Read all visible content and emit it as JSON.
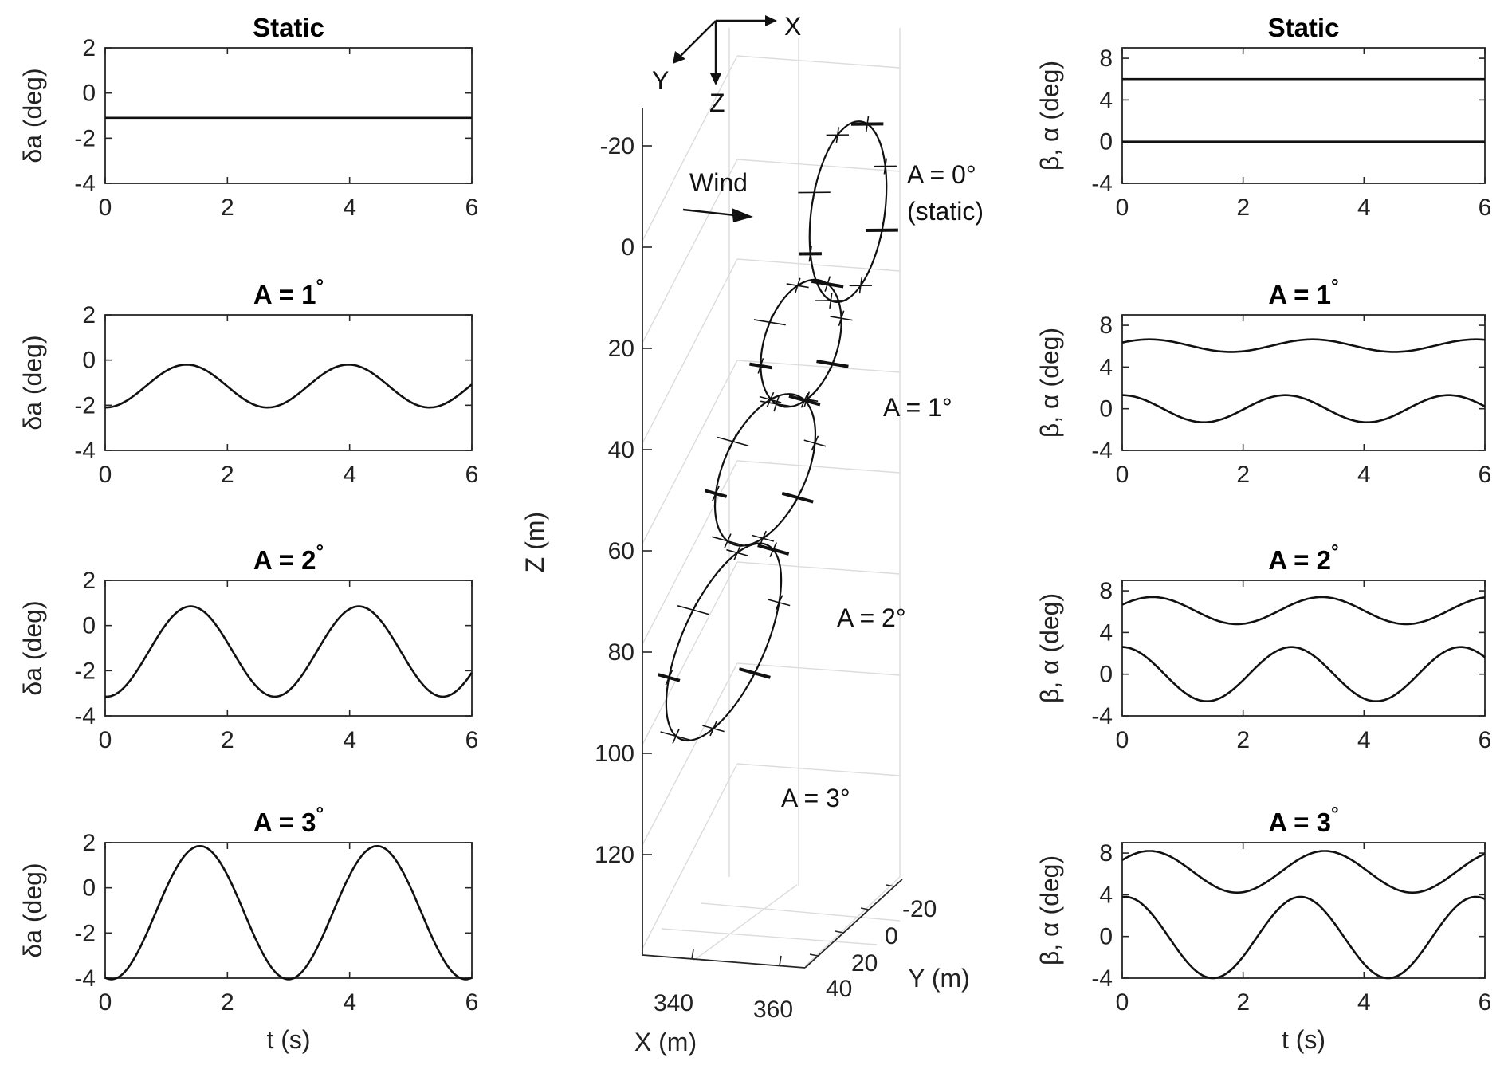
{
  "chart_data": [
    {
      "type": "line",
      "panel": "left",
      "row": 0,
      "title": "Static",
      "xlabel": "",
      "ylabel": "δa (deg)",
      "xlim": [
        0,
        6
      ],
      "ylim": [
        -4,
        2
      ],
      "xticks": [
        "0",
        "2",
        "4",
        "6"
      ],
      "yticks": [
        "2",
        "0",
        "-2",
        "-4"
      ],
      "series": [
        {
          "name": "δa",
          "kind": "constant",
          "value": -1.1
        }
      ]
    },
    {
      "type": "line",
      "panel": "left",
      "row": 1,
      "title": "A = 1°",
      "xlabel": "",
      "ylabel": "δa (deg)",
      "xlim": [
        0,
        6
      ],
      "ylim": [
        -4,
        2
      ],
      "xticks": [
        "0",
        "2",
        "4",
        "6"
      ],
      "yticks": [
        "2",
        "0",
        "-2",
        "-4"
      ],
      "series": [
        {
          "name": "δa",
          "kind": "sine",
          "offset": -1.15,
          "amplitude": 0.95,
          "period": 2.65,
          "peak_t": 1.33
        }
      ]
    },
    {
      "type": "line",
      "panel": "left",
      "row": 2,
      "title": "A = 2°",
      "xlabel": "",
      "ylabel": "δa (deg)",
      "xlim": [
        0,
        6
      ],
      "ylim": [
        -4,
        2
      ],
      "xticks": [
        "0",
        "2",
        "4",
        "6"
      ],
      "yticks": [
        "2",
        "0",
        "-2",
        "-4"
      ],
      "series": [
        {
          "name": "δa",
          "kind": "sine",
          "offset": -1.15,
          "amplitude": 2.0,
          "period": 2.75,
          "peak_t": 1.4
        }
      ]
    },
    {
      "type": "line",
      "panel": "left",
      "row": 3,
      "title": "A = 3°",
      "xlabel": "t (s)",
      "ylabel": "δa (deg)",
      "xlim": [
        0,
        6
      ],
      "ylim": [
        -4,
        2
      ],
      "xticks": [
        "0",
        "2",
        "4",
        "6"
      ],
      "yticks": [
        "2",
        "0",
        "-2",
        "-4"
      ],
      "series": [
        {
          "name": "δa",
          "kind": "sine",
          "offset": -1.1,
          "amplitude": 2.95,
          "period": 2.9,
          "peak_t": 1.55
        }
      ]
    },
    {
      "type": "line",
      "panel": "right",
      "row": 0,
      "title": "Static",
      "xlabel": "",
      "ylabel": "β, α (deg)",
      "xlim": [
        0,
        6
      ],
      "ylim": [
        -4,
        9
      ],
      "xticks": [
        "0",
        "2",
        "4",
        "6"
      ],
      "yticks": [
        "8",
        "4",
        "0",
        "-4"
      ],
      "series": [
        {
          "name": "β",
          "kind": "constant",
          "value": 6.0
        },
        {
          "name": "α",
          "kind": "constant",
          "value": 0.0
        }
      ]
    },
    {
      "type": "line",
      "panel": "right",
      "row": 1,
      "title": "A = 1°",
      "xlabel": "",
      "ylabel": "β, α (deg)",
      "xlim": [
        0,
        6
      ],
      "ylim": [
        -4,
        9
      ],
      "xticks": [
        "0",
        "2",
        "4",
        "6"
      ],
      "yticks": [
        "8",
        "4",
        "0",
        "-4"
      ],
      "series": [
        {
          "name": "β",
          "kind": "sine",
          "offset": 6.05,
          "amplitude": 0.6,
          "period": 2.7,
          "peak_t": 0.45
        },
        {
          "name": "α",
          "kind": "sine",
          "offset": 0.0,
          "amplitude": 1.3,
          "period": 2.7,
          "peak_t": 2.7
        }
      ]
    },
    {
      "type": "line",
      "panel": "right",
      "row": 2,
      "title": "A = 2°",
      "xlabel": "",
      "ylabel": "β, α (deg)",
      "xlim": [
        0,
        6
      ],
      "ylim": [
        -4,
        9
      ],
      "xticks": [
        "0",
        "2",
        "4",
        "6"
      ],
      "yticks": [
        "8",
        "4",
        "0",
        "-4"
      ],
      "series": [
        {
          "name": "β",
          "kind": "sine",
          "offset": 6.1,
          "amplitude": 1.3,
          "period": 2.8,
          "peak_t": 0.5
        },
        {
          "name": "α",
          "kind": "sine",
          "offset": 0.0,
          "amplitude": 2.6,
          "period": 2.8,
          "peak_t": 2.8
        }
      ]
    },
    {
      "type": "line",
      "panel": "right",
      "row": 3,
      "title": "A = 3°",
      "xlabel": "t (s)",
      "ylabel": "β, α (deg)",
      "xlim": [
        0,
        6
      ],
      "ylim": [
        -4,
        9
      ],
      "xticks": [
        "0",
        "2",
        "4",
        "6"
      ],
      "yticks": [
        "8",
        "4",
        "0",
        "-4"
      ],
      "series": [
        {
          "name": "β",
          "kind": "sine",
          "offset": 6.2,
          "amplitude": 2.0,
          "period": 2.9,
          "peak_t": 0.45
        },
        {
          "name": "α",
          "kind": "sine",
          "offset": -0.1,
          "amplitude": 3.9,
          "period": 2.9,
          "peak_t": 2.95
        }
      ]
    },
    {
      "type": "line3d",
      "panel": "center",
      "title": "",
      "xlabel": "X (m)",
      "ylabel": "Y (m)",
      "zlabel": "Z (m)",
      "xticks": [
        "340",
        "360"
      ],
      "yticks": [
        "-20",
        "0",
        "20",
        "40"
      ],
      "zticks": [
        "-20",
        "0",
        "20",
        "40",
        "60",
        "80",
        "100",
        "120"
      ],
      "zlim": [
        -30,
        140
      ],
      "frame_axes": [
        "X",
        "Y",
        "Z"
      ],
      "wind_label": "Wind",
      "annotations": [
        "A = 0°",
        "(static)",
        "A = 1°",
        "A = 2°",
        "A = 3°"
      ],
      "series": [
        {
          "name": "A = 0° (static)",
          "z_center": -7,
          "z_halfheight": 18,
          "y_halfwidth": 6.3,
          "tilt_deg": 8
        },
        {
          "name": "A = 1°",
          "z_center": 19,
          "z_halfheight": 13,
          "y_halfwidth": 6.0,
          "tilt_deg": 18
        },
        {
          "name": "A = 2°",
          "z_center": 44,
          "z_halfheight": 16,
          "y_halfwidth": 6.5,
          "tilt_deg": 24
        },
        {
          "name": "A = 3°",
          "z_center": 78,
          "z_halfheight": 21,
          "y_halfwidth": 6.4,
          "tilt_deg": 24
        }
      ]
    }
  ]
}
